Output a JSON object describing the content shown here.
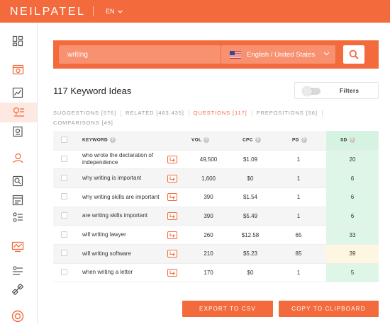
{
  "brand": {
    "logo_text": "NEILPATEL",
    "accent": "#f36a3d"
  },
  "language": {
    "code": "EN"
  },
  "search": {
    "value": "writing",
    "location": "English / United States"
  },
  "results": {
    "title": "117 Keyword Ideas",
    "filters_label": "Filters"
  },
  "tabs": [
    {
      "label": "SUGGESTIONS [576]"
    },
    {
      "label": "RELATED [483,435]"
    },
    {
      "label": "QUESTIONS [117]"
    },
    {
      "label": "PREPOSITIONS [56]"
    },
    {
      "label": "COMPARISONS [49]"
    }
  ],
  "table": {
    "headers": {
      "keyword": "KEYWORD",
      "vol": "VOL",
      "cpc": "CPC",
      "pd": "PD",
      "sd": "SD"
    },
    "rows": [
      {
        "keyword": "who wrote the declaration of independence",
        "vol": "49,500",
        "cpc": "$1.09",
        "pd": "1",
        "sd": "20",
        "sd_color": "#ddf6e8"
      },
      {
        "keyword": "why writing is important",
        "vol": "1,600",
        "cpc": "$0",
        "pd": "1",
        "sd": "6",
        "sd_color": "#ddf6e8"
      },
      {
        "keyword": "why writing skills are important",
        "vol": "390",
        "cpc": "$1.54",
        "pd": "1",
        "sd": "6",
        "sd_color": "#ddf6e8"
      },
      {
        "keyword": "are writing skills important",
        "vol": "390",
        "cpc": "$5.49",
        "pd": "1",
        "sd": "6",
        "sd_color": "#ddf6e8"
      },
      {
        "keyword": "will writing lawyer",
        "vol": "260",
        "cpc": "$12.58",
        "pd": "65",
        "sd": "33",
        "sd_color": "#ddf6e8"
      },
      {
        "keyword": "will writing software",
        "vol": "210",
        "cpc": "$5.23",
        "pd": "85",
        "sd": "39",
        "sd_color": "#fdf6e1"
      },
      {
        "keyword": "when writing a letter",
        "vol": "170",
        "cpc": "$0",
        "pd": "1",
        "sd": "5",
        "sd_color": "#ddf6e8"
      }
    ]
  },
  "actions": {
    "export_label": "EXPORT TO CSV",
    "copy_label": "COPY TO CLIPBOARD"
  },
  "sidebar_icons": [
    "dashboard-icon",
    "site-audit-icon",
    "traffic-analyzer-icon",
    "keyword-ideas-icon",
    "content-ideas-icon",
    "backlinks-icon",
    "rank-tracker-icon",
    "seo-analyzer-icon",
    "site-structure-icon",
    "traffic-graph-icon",
    "filters-icon",
    "link-building-icon",
    "help-icon"
  ]
}
